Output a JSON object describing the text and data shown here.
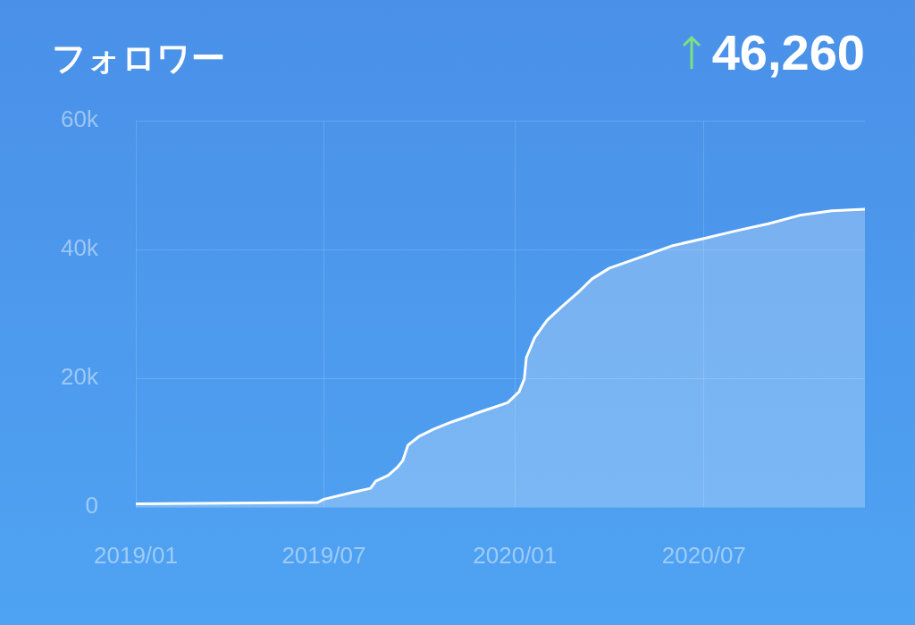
{
  "chart_data": {
    "type": "area",
    "title": "フォロワー",
    "annotations": [
      "46,260"
    ],
    "x": [
      "2019-01-01",
      "2019-06-25",
      "2019-07-01",
      "2019-08-01",
      "2019-08-15",
      "2019-08-20",
      "2019-09-01",
      "2019-09-10",
      "2019-09-15",
      "2019-09-20",
      "2019-10-01",
      "2019-10-15",
      "2019-11-01",
      "2019-12-01",
      "2019-12-25",
      "2020-01-05",
      "2020-01-10",
      "2020-01-12",
      "2020-01-20",
      "2020-02-01",
      "2020-02-15",
      "2020-03-01",
      "2020-03-15",
      "2020-04-01",
      "2020-05-01",
      "2020-06-01",
      "2020-07-01",
      "2020-08-01",
      "2020-09-01",
      "2020-10-01",
      "2020-11-01",
      "2020-12-03"
    ],
    "series": [
      {
        "color": "#ffffff",
        "values": [
          500,
          700,
          1200,
          2400,
          2900,
          4000,
          4900,
          6200,
          7200,
          9600,
          11000,
          12100,
          13200,
          14900,
          16200,
          17900,
          19900,
          23200,
          26300,
          29000,
          31100,
          33200,
          35400,
          37100,
          38800,
          40600,
          41700,
          42900,
          44000,
          45300,
          46000,
          46260
        ]
      }
    ],
    "xlim": [
      "2019-01-01",
      "2020-12-03"
    ],
    "xticks": [
      {
        "value": "2019-01-01",
        "label": "2019/01"
      },
      {
        "value": "2019-07-01",
        "label": "2019/07"
      },
      {
        "value": "2020-01-01",
        "label": "2020/01"
      },
      {
        "value": "2020-07-01",
        "label": "2020/07"
      }
    ],
    "ylim": [
      0,
      60000
    ],
    "yticks": [
      0,
      {
        "value": 20000,
        "label": "20k"
      },
      {
        "value": 40000,
        "label": "40k"
      },
      {
        "value": 60000,
        "label": "60k"
      }
    ],
    "grid": true,
    "legend": false,
    "marker": "none",
    "line_style": "solid"
  }
}
